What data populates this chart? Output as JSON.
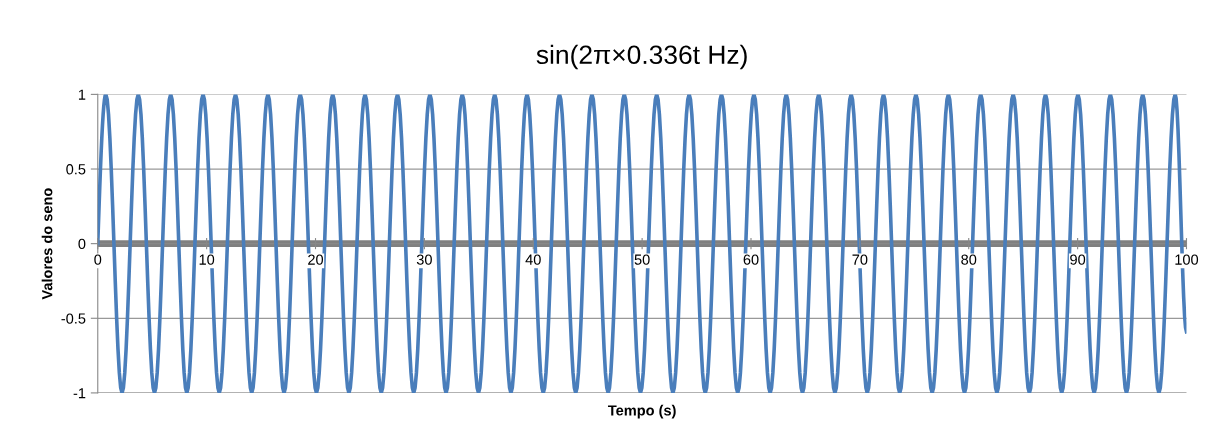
{
  "chart_data": {
    "type": "line",
    "title": "sin(2π×0.336t Hz)",
    "xlabel": "Tempo (s)",
    "ylabel": "Valores do seno",
    "xlim": [
      0,
      100
    ],
    "xticks": [
      0,
      10,
      20,
      30,
      40,
      50,
      60,
      70,
      80,
      90,
      100
    ],
    "ylim": [
      -1,
      1
    ],
    "yticks": [
      -1,
      -0.5,
      0,
      0.5,
      1
    ],
    "grid": "y",
    "legend": false,
    "marker": "none",
    "line_style": "solid",
    "ref_lines": [
      {
        "axis": "y",
        "value": 0,
        "color": "#808080"
      }
    ],
    "series": [
      {
        "color": "#4a7ebb",
        "x": [
          0,
          0.74,
          2.23,
          3.72,
          5.21,
          6.7,
          8.18,
          9.67,
          11.16,
          12.65,
          14.14,
          15.63,
          17.11,
          18.6,
          20.09,
          21.58,
          23.07,
          24.55,
          26.04,
          27.53,
          29.02,
          30.51,
          31.99,
          33.48,
          34.97,
          36.46,
          37.95,
          39.43,
          40.92,
          42.41,
          43.9,
          45.39,
          46.88,
          48.36,
          49.85,
          51.34,
          52.83,
          54.32,
          55.8,
          57.29,
          58.78,
          60.27,
          61.76,
          63.24,
          64.73,
          66.22,
          67.71,
          69.2,
          70.68,
          72.17,
          73.66,
          75.15,
          76.64,
          78.13,
          79.61,
          81.1,
          82.59,
          84.08,
          85.57,
          87.05,
          88.54,
          90.03,
          91.52,
          93.01,
          94.49,
          95.98,
          97.47,
          98.96,
          100
        ],
        "values": [
          0,
          1,
          -1,
          1,
          -1,
          1,
          -1,
          1,
          -1,
          1,
          -1,
          1,
          -1,
          1,
          -1,
          1,
          -1,
          1,
          -1,
          1,
          -1,
          1,
          -1,
          1,
          -1,
          1,
          -1,
          1,
          -1,
          1,
          -1,
          1,
          -1,
          1,
          -1,
          1,
          -1,
          1,
          -1,
          1,
          -1,
          1,
          -1,
          1,
          -1,
          1,
          -1,
          1,
          -1,
          1,
          -1,
          1,
          -1,
          1,
          -1,
          1,
          -1,
          1,
          -1,
          1,
          -1,
          1,
          -1,
          1,
          -1,
          1,
          -1,
          1,
          -0.59
        ]
      }
    ]
  }
}
